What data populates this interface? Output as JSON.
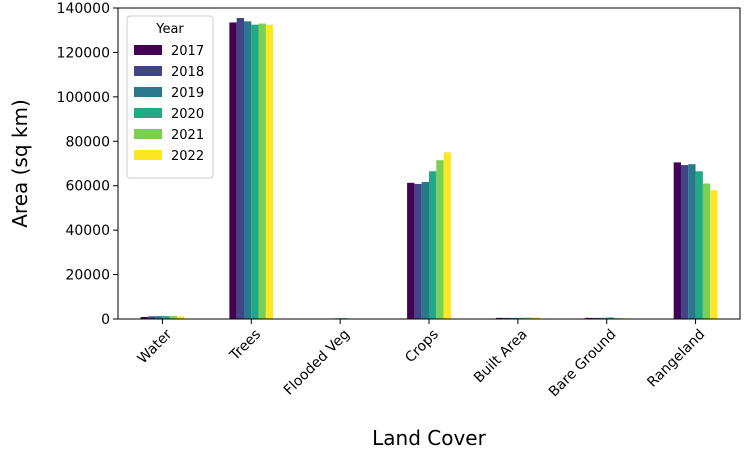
{
  "chart_data": {
    "type": "bar",
    "title": "",
    "xlabel": "Land Cover",
    "ylabel": "Area (sq km)",
    "ylim": [
      0,
      140000
    ],
    "yticks": [
      0,
      20000,
      40000,
      60000,
      80000,
      100000,
      120000,
      140000
    ],
    "categories": [
      "Water",
      "Trees",
      "Flooded Veg",
      "Crops",
      "Built Area",
      "Bare Ground",
      "Rangeland"
    ],
    "legend": {
      "title": "Year",
      "placement": "top-left"
    },
    "grid": false,
    "series": [
      {
        "name": "2017",
        "color": "#440154",
        "values": [
          900,
          133500,
          200,
          61300,
          500,
          500,
          70500
        ]
      },
      {
        "name": "2018",
        "color": "#414487",
        "values": [
          1200,
          135500,
          200,
          60800,
          500,
          500,
          69300
        ]
      },
      {
        "name": "2019",
        "color": "#2a788e",
        "values": [
          1300,
          134000,
          300,
          61700,
          500,
          500,
          69700
        ]
      },
      {
        "name": "2020",
        "color": "#22a884",
        "values": [
          1300,
          132500,
          400,
          66500,
          500,
          700,
          66500
        ]
      },
      {
        "name": "2021",
        "color": "#7ad151",
        "values": [
          1300,
          133000,
          200,
          71500,
          600,
          400,
          61000
        ]
      },
      {
        "name": "2022",
        "color": "#fde725",
        "values": [
          1200,
          132500,
          200,
          75000,
          700,
          300,
          58000
        ]
      }
    ]
  }
}
